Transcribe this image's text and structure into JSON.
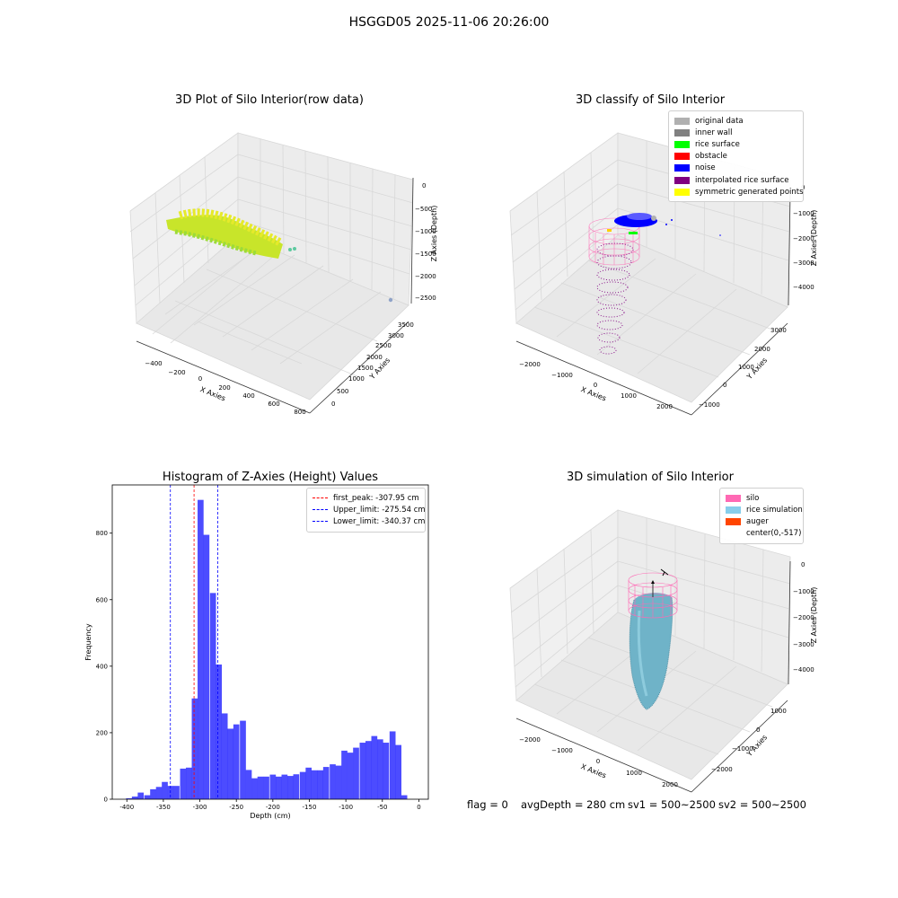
{
  "figure_title": "HSGGD05 2025-11-06 20:26:00",
  "chart_data": [
    {
      "type": "scatter3d",
      "title": "3D Plot of Silo Interior(row data)",
      "xlabel": "X Axies",
      "ylabel": "Y Axies",
      "zlabel": "Z Axies (Depth)",
      "xticks": [
        "−400",
        "−200",
        "0",
        "200",
        "400",
        "600",
        "800"
      ],
      "yticks": [
        "0",
        "500",
        "1000",
        "1500",
        "2000",
        "2500",
        "3000",
        "3500"
      ],
      "zticks": [
        "0",
        "−500",
        "−1000",
        "−1500",
        "−2000",
        "−2500"
      ],
      "grid": true,
      "colormap": "viridis (yellow-green)"
    },
    {
      "type": "scatter3d",
      "title": "3D classify of Silo Interior",
      "xlabel": "X Axies",
      "ylabel": "Y Axies",
      "zlabel": "Z Axies (Depth)",
      "xticks": [
        "−2000",
        "−1000",
        "0",
        "1000",
        "2000"
      ],
      "yticks": [
        "−1000",
        "0",
        "1000",
        "2000",
        "3000"
      ],
      "zticks": [
        "0",
        "−1000",
        "−2000",
        "−3000",
        "−4000"
      ],
      "legend_position": "top-right",
      "legend": [
        {
          "label": "original data",
          "color": "#b0b0b0"
        },
        {
          "label": "inner wall",
          "color": "#808080"
        },
        {
          "label": "rice surface",
          "color": "#00ff00"
        },
        {
          "label": "obstacle",
          "color": "#ff0000"
        },
        {
          "label": "noise",
          "color": "#0000ff"
        },
        {
          "label": "interpolated rice surface",
          "color": "#800080"
        },
        {
          "label": "symmetric generated points",
          "color": "#ffff00"
        }
      ]
    },
    {
      "type": "bar",
      "title": "Histogram of Z-Axies (Height) Values",
      "xlabel": "Depth (cm)",
      "ylabel": "Frequency",
      "xlim": [
        -420,
        13
      ],
      "ylim": [
        0,
        945
      ],
      "xticks": [
        -400,
        -350,
        -300,
        -250,
        -200,
        -150,
        -100,
        -50,
        0
      ],
      "yticks": [
        0,
        200,
        400,
        600,
        800
      ],
      "bar_color": "#0000ff",
      "bin_width": 8.2,
      "bin_centers": [
        -397,
        -389,
        -381,
        -372,
        -364,
        -356,
        -348,
        -340,
        -332,
        -323,
        -315,
        -307,
        -299,
        -291,
        -282,
        -274,
        -266,
        -258,
        -250,
        -241,
        -233,
        -225,
        -217,
        -209,
        -200,
        -192,
        -184,
        -176,
        -168,
        -159,
        -151,
        -143,
        -135,
        -127,
        -118,
        -110,
        -102,
        -94,
        -86,
        -77,
        -69,
        -61,
        -53,
        -45,
        -36,
        -28,
        -20,
        -12,
        -4
      ],
      "values": [
        3,
        8,
        20,
        12,
        30,
        37,
        52,
        40,
        40,
        92,
        95,
        303,
        900,
        795,
        620,
        405,
        258,
        212,
        225,
        236,
        88,
        63,
        68,
        68,
        74,
        68,
        74,
        70,
        75,
        82,
        95,
        87,
        87,
        97,
        105,
        101,
        146,
        140,
        155,
        170,
        175,
        190,
        180,
        170,
        204,
        163,
        12,
        0,
        0
      ],
      "vlines": [
        {
          "label": "first_peak: -307.95 cm",
          "x": -307.95,
          "color": "#ff0000",
          "style": "dashed"
        },
        {
          "label": "Upper_limit: -275.54 cm",
          "x": -275.54,
          "color": "#0000ff",
          "style": "dashed"
        },
        {
          "label": "Lower_limit: -340.37 cm",
          "x": -340.37,
          "color": "#0000ff",
          "style": "dashed"
        }
      ],
      "legend_position": "top-right"
    },
    {
      "type": "surface3d",
      "title": "3D simulation of Silo Interior",
      "xlabel": "X Axies",
      "ylabel": "Y Axies",
      "zlabel": "Z Axies (Depth)",
      "xticks": [
        "−2000",
        "−1000",
        "0",
        "1000",
        "2000"
      ],
      "yticks": [
        "−2000",
        "−1000",
        "0",
        "1000"
      ],
      "zticks": [
        "0",
        "−1000",
        "−2000",
        "−3000",
        "−4000"
      ],
      "legend_position": "top-right",
      "legend": [
        {
          "label": "silo",
          "color": "#ff69b4"
        },
        {
          "label": "rice simulation",
          "color": "#87ceeb"
        },
        {
          "label": "auger",
          "color": "#ff4500"
        },
        {
          "label": "center(0,-517)",
          "color": ""
        }
      ]
    }
  ],
  "info": {
    "flag": "flag = 0",
    "avg_depth": "avgDepth = 280 cm",
    "sv1": "sv1 = 500~2500",
    "sv2": "sv2 = 500~2500"
  }
}
